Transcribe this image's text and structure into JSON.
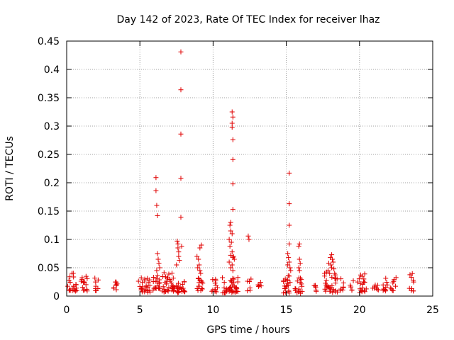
{
  "chart_data": {
    "type": "scatter",
    "title": "Day 142 of 2023, Rate Of TEC Index for receiver lhaz",
    "xlabel": "GPS time / hours",
    "ylabel": "ROTI / TECUs",
    "xlim": [
      0,
      25
    ],
    "ylim": [
      0,
      0.45
    ],
    "xticks": [
      0,
      5,
      10,
      15,
      20,
      25
    ],
    "xtick_labels": [
      "0",
      "5",
      "10",
      "15",
      "20",
      "25"
    ],
    "yticks": [
      0,
      0.05,
      0.1,
      0.15,
      0.2,
      0.25,
      0.3,
      0.35,
      0.4,
      0.45
    ],
    "ytick_labels": [
      "0",
      "0.05",
      "0.1",
      "0.15",
      "0.2",
      "0.25",
      "0.3",
      "0.35",
      "0.4",
      "0.45"
    ],
    "grid": true,
    "marker": "+",
    "colors": {
      "points": "#e00000",
      "grid": "#a0a0a0",
      "axes": "#000000"
    },
    "series": [
      {
        "clusters": [
          [
            0.0,
            0.7,
            0.008,
            0.04,
            22
          ],
          [
            0.9,
            1.4,
            0.008,
            0.035,
            14
          ],
          [
            1.9,
            2.2,
            0.008,
            0.03,
            8
          ],
          [
            3.2,
            3.5,
            0.01,
            0.028,
            8
          ],
          [
            4.9,
            5.7,
            0.006,
            0.032,
            26
          ],
          [
            5.9,
            6.4,
            0.01,
            0.04,
            18
          ],
          [
            6.5,
            7.4,
            0.006,
            0.04,
            34
          ],
          [
            7.5,
            8.1,
            0.005,
            0.025,
            22
          ],
          [
            8.9,
            9.3,
            0.008,
            0.035,
            14
          ],
          [
            9.9,
            10.3,
            0.005,
            0.03,
            12
          ],
          [
            10.6,
            11.0,
            0.005,
            0.03,
            12
          ],
          [
            11.0,
            11.7,
            0.005,
            0.035,
            28
          ],
          [
            12.3,
            12.6,
            0.008,
            0.035,
            6
          ],
          [
            13.0,
            13.3,
            0.015,
            0.035,
            5
          ],
          [
            14.8,
            15.3,
            0.005,
            0.04,
            20
          ],
          [
            15.6,
            16.1,
            0.005,
            0.035,
            16
          ],
          [
            16.7,
            17.1,
            0.008,
            0.035,
            7
          ],
          [
            17.6,
            18.5,
            0.005,
            0.04,
            32
          ],
          [
            18.7,
            19.0,
            0.008,
            0.03,
            7
          ],
          [
            19.3,
            19.6,
            0.008,
            0.03,
            5
          ],
          [
            19.8,
            20.5,
            0.005,
            0.038,
            20
          ],
          [
            20.9,
            21.3,
            0.01,
            0.03,
            8
          ],
          [
            21.5,
            21.9,
            0.008,
            0.035,
            10
          ],
          [
            22.1,
            22.5,
            0.008,
            0.03,
            9
          ],
          [
            23.4,
            23.7,
            0.008,
            0.04,
            10
          ]
        ],
        "points": [
          [
            6.1,
            0.209
          ],
          [
            6.1,
            0.186
          ],
          [
            6.15,
            0.16
          ],
          [
            6.2,
            0.142
          ],
          [
            7.8,
            0.431
          ],
          [
            7.8,
            0.364
          ],
          [
            7.8,
            0.286
          ],
          [
            7.8,
            0.208
          ],
          [
            7.8,
            0.139
          ],
          [
            7.55,
            0.097
          ],
          [
            7.6,
            0.092
          ],
          [
            7.6,
            0.085
          ],
          [
            7.65,
            0.078
          ],
          [
            7.65,
            0.07
          ],
          [
            7.7,
            0.063
          ],
          [
            7.85,
            0.088
          ],
          [
            7.5,
            0.055
          ],
          [
            6.2,
            0.075
          ],
          [
            6.25,
            0.065
          ],
          [
            6.3,
            0.058
          ],
          [
            6.35,
            0.05
          ],
          [
            6.15,
            0.045
          ],
          [
            9.2,
            0.09
          ],
          [
            9.1,
            0.085
          ],
          [
            8.9,
            0.07
          ],
          [
            9.0,
            0.065
          ],
          [
            9.05,
            0.055
          ],
          [
            8.95,
            0.05
          ],
          [
            9.1,
            0.045
          ],
          [
            9.15,
            0.04
          ],
          [
            11.3,
            0.325
          ],
          [
            11.35,
            0.316
          ],
          [
            11.3,
            0.305
          ],
          [
            11.3,
            0.298
          ],
          [
            11.35,
            0.276
          ],
          [
            11.35,
            0.241
          ],
          [
            11.35,
            0.198
          ],
          [
            11.35,
            0.153
          ],
          [
            11.2,
            0.13
          ],
          [
            11.15,
            0.125
          ],
          [
            11.2,
            0.115
          ],
          [
            11.3,
            0.11
          ],
          [
            11.1,
            0.1
          ],
          [
            11.25,
            0.095
          ],
          [
            11.15,
            0.088
          ],
          [
            11.3,
            0.078
          ],
          [
            11.2,
            0.072
          ],
          [
            11.35,
            0.068
          ],
          [
            11.1,
            0.06
          ],
          [
            11.3,
            0.055
          ],
          [
            11.4,
            0.07
          ],
          [
            11.45,
            0.065
          ],
          [
            11.2,
            0.05
          ],
          [
            11.35,
            0.045
          ],
          [
            12.4,
            0.106
          ],
          [
            12.45,
            0.1
          ],
          [
            15.2,
            0.217
          ],
          [
            15.2,
            0.163
          ],
          [
            15.2,
            0.125
          ],
          [
            15.2,
            0.092
          ],
          [
            15.1,
            0.075
          ],
          [
            15.15,
            0.068
          ],
          [
            15.2,
            0.06
          ],
          [
            15.1,
            0.055
          ],
          [
            15.25,
            0.05
          ],
          [
            15.3,
            0.045
          ],
          [
            15.9,
            0.092
          ],
          [
            15.85,
            0.088
          ],
          [
            15.9,
            0.065
          ],
          [
            15.95,
            0.058
          ],
          [
            15.85,
            0.05
          ],
          [
            15.9,
            0.045
          ],
          [
            18.1,
            0.073
          ],
          [
            18.0,
            0.068
          ],
          [
            18.15,
            0.065
          ],
          [
            18.2,
            0.06
          ],
          [
            17.9,
            0.058
          ],
          [
            18.05,
            0.055
          ],
          [
            18.1,
            0.05
          ],
          [
            18.25,
            0.048
          ],
          [
            17.85,
            0.045
          ],
          [
            18.3,
            0.04
          ]
        ]
      }
    ]
  }
}
